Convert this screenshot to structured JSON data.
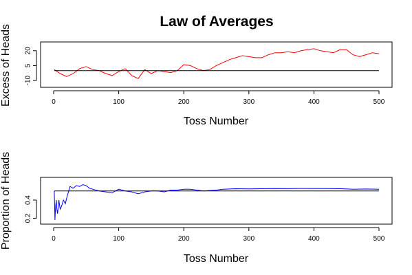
{
  "chart_data": [
    {
      "type": "line",
      "title": "Law of Averages",
      "xlabel": "Toss Number",
      "ylabel": "Excess of Heads",
      "xlim": [
        0,
        500
      ],
      "ylim": [
        -12,
        24
      ],
      "xticks": [
        0,
        100,
        200,
        300,
        400,
        500
      ],
      "yticks": [
        -10,
        5,
        20
      ],
      "yticks_shown": [
        "-10",
        "5",
        "20"
      ],
      "grid": false,
      "series": [
        {
          "color": "#ff0000",
          "x": [
            1,
            10,
            20,
            30,
            40,
            50,
            60,
            70,
            80,
            90,
            100,
            110,
            120,
            130,
            140,
            150,
            160,
            170,
            180,
            190,
            200,
            210,
            220,
            230,
            240,
            250,
            260,
            270,
            280,
            290,
            300,
            310,
            320,
            330,
            340,
            350,
            360,
            370,
            380,
            390,
            400,
            410,
            420,
            430,
            440,
            450,
            460,
            470,
            480,
            490,
            500
          ],
          "values": [
            1,
            -3,
            -6,
            -3,
            2,
            4,
            1,
            0,
            -3,
            -5,
            -1,
            2,
            -5,
            -8,
            1,
            -3,
            0,
            -1,
            -2,
            0,
            6,
            5,
            2,
            0,
            1,
            5,
            8,
            11,
            13,
            15,
            14,
            13,
            13,
            16,
            18,
            18,
            19,
            18,
            20,
            21,
            22,
            20,
            19,
            18,
            21,
            21,
            16,
            14,
            16,
            18,
            17
          ]
        },
        {
          "color": "#000000",
          "x": [
            1,
            500
          ],
          "values": [
            0,
            0
          ]
        }
      ]
    },
    {
      "type": "line",
      "title": "",
      "xlabel": "Toss Number",
      "ylabel": "Proportion of Heads",
      "xlim": [
        0,
        500
      ],
      "ylim": [
        0.15,
        0.65
      ],
      "xticks": [
        0,
        100,
        200,
        300,
        400,
        500
      ],
      "yticks": [
        0.2,
        0.4
      ],
      "yticks_shown": [
        "0.2",
        "0.4"
      ],
      "grid": false,
      "series": [
        {
          "color": "#0000ff",
          "x": [
            1,
            2,
            3,
            4,
            5,
            6,
            8,
            10,
            12,
            15,
            18,
            20,
            25,
            30,
            35,
            40,
            45,
            50,
            55,
            60,
            70,
            80,
            90,
            100,
            110,
            120,
            130,
            140,
            150,
            160,
            170,
            180,
            190,
            200,
            210,
            220,
            230,
            240,
            250,
            260,
            270,
            280,
            290,
            300,
            320,
            340,
            360,
            380,
            400,
            420,
            440,
            460,
            480,
            500
          ],
          "values": [
            0.5,
            0.18,
            0.33,
            0.4,
            0.3,
            0.25,
            0.4,
            0.3,
            0.33,
            0.4,
            0.36,
            0.42,
            0.55,
            0.53,
            0.56,
            0.55,
            0.57,
            0.56,
            0.53,
            0.52,
            0.5,
            0.49,
            0.48,
            0.52,
            0.5,
            0.49,
            0.47,
            0.49,
            0.5,
            0.5,
            0.49,
            0.51,
            0.51,
            0.52,
            0.52,
            0.51,
            0.5,
            0.505,
            0.51,
            0.52,
            0.522,
            0.525,
            0.524,
            0.523,
            0.525,
            0.527,
            0.526,
            0.528,
            0.527,
            0.527,
            0.525,
            0.52,
            0.522,
            0.52
          ]
        },
        {
          "color": "#000000",
          "x": [
            1,
            500
          ],
          "values": [
            0.5,
            0.5
          ]
        }
      ]
    }
  ]
}
